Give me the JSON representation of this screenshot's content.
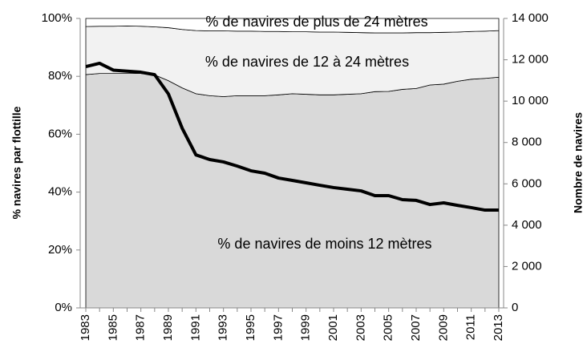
{
  "chart_data": {
    "type": "stacked_area_line",
    "categories": [
      1983,
      null,
      1985,
      null,
      1987,
      null,
      1989,
      null,
      1991,
      null,
      1993,
      null,
      1995,
      null,
      1997,
      null,
      1999,
      null,
      2001,
      null,
      2003,
      null,
      2005,
      null,
      2007,
      null,
      2009,
      null,
      2011,
      null,
      2013
    ],
    "y_label": "% navires par flottille",
    "y2_label": "Nombre de navires",
    "ylim": [
      0,
      100
    ],
    "yticks": [
      {
        "value": 0,
        "label": "0%"
      },
      {
        "value": 20,
        "label": "20%"
      },
      {
        "value": 40,
        "label": "40%"
      },
      {
        "value": 60,
        "label": "60%"
      },
      {
        "value": 80,
        "label": "80%"
      },
      {
        "value": 100,
        "label": "100%"
      }
    ],
    "y2lim": [
      0,
      14000
    ],
    "y2ticks": [
      0,
      {
        "value": 2000,
        "label": "2 000"
      },
      {
        "value": 4000,
        "label": "4 000"
      },
      {
        "value": 6000,
        "label": "6 000"
      },
      {
        "value": 8000,
        "label": "8 000"
      },
      {
        "value": 10000,
        "label": "10 000"
      },
      {
        "value": 12000,
        "label": "12 000"
      },
      {
        "value": 14000,
        "label": "14 000"
      }
    ],
    "series": [
      {
        "name": "% de navires de moins 12 mètres",
        "color": "#d9d9d9",
        "values": [
          80.6,
          81,
          81,
          81,
          81,
          80.5,
          78.5,
          76,
          74,
          73.3,
          73,
          73.3,
          73.3,
          73.3,
          73.6,
          74,
          73.8,
          73.6,
          73.6,
          73.8,
          74,
          74.7,
          74.8,
          75.5,
          75.8,
          77,
          77.3,
          78.3,
          79,
          79.3,
          79.7
        ]
      },
      {
        "name": "% de navires de 12 à 24 mètres",
        "color": "#f2f2f2",
        "values": [
          16.6,
          16.3,
          16.3,
          16.4,
          16.3,
          16.6,
          18.3,
          20.2,
          21.8,
          22.4,
          22.7,
          22.3,
          22.3,
          22.2,
          21.9,
          21.4,
          21.6,
          21.7,
          21.7,
          21.4,
          21.1,
          20.3,
          20.2,
          19.5,
          19.3,
          18.1,
          17.9,
          17.0,
          16.5,
          16.3,
          16.1
        ]
      },
      {
        "name": "% de navires de plus de 24 mètres",
        "color": "#ffffff",
        "values": [
          2.8,
          2.7,
          2.7,
          2.6,
          2.7,
          2.9,
          3.2,
          3.8,
          4.2,
          4.3,
          4.3,
          4.4,
          4.4,
          4.5,
          4.5,
          4.6,
          4.6,
          4.7,
          4.7,
          4.8,
          4.9,
          5.0,
          5.0,
          5.0,
          4.9,
          4.9,
          4.8,
          4.7,
          4.5,
          4.4,
          4.2
        ]
      },
      {
        "color": "#000000",
        "axis": "y2",
        "values": [
          11670,
          11830,
          11500,
          11450,
          11400,
          11280,
          10350,
          8690,
          7400,
          7175,
          7060,
          6860,
          6630,
          6515,
          6280,
          6165,
          6050,
          5930,
          5820,
          5740,
          5660,
          5430,
          5430,
          5235,
          5200,
          5000,
          5080,
          4960,
          4850,
          4730,
          4730
        ]
      }
    ]
  }
}
